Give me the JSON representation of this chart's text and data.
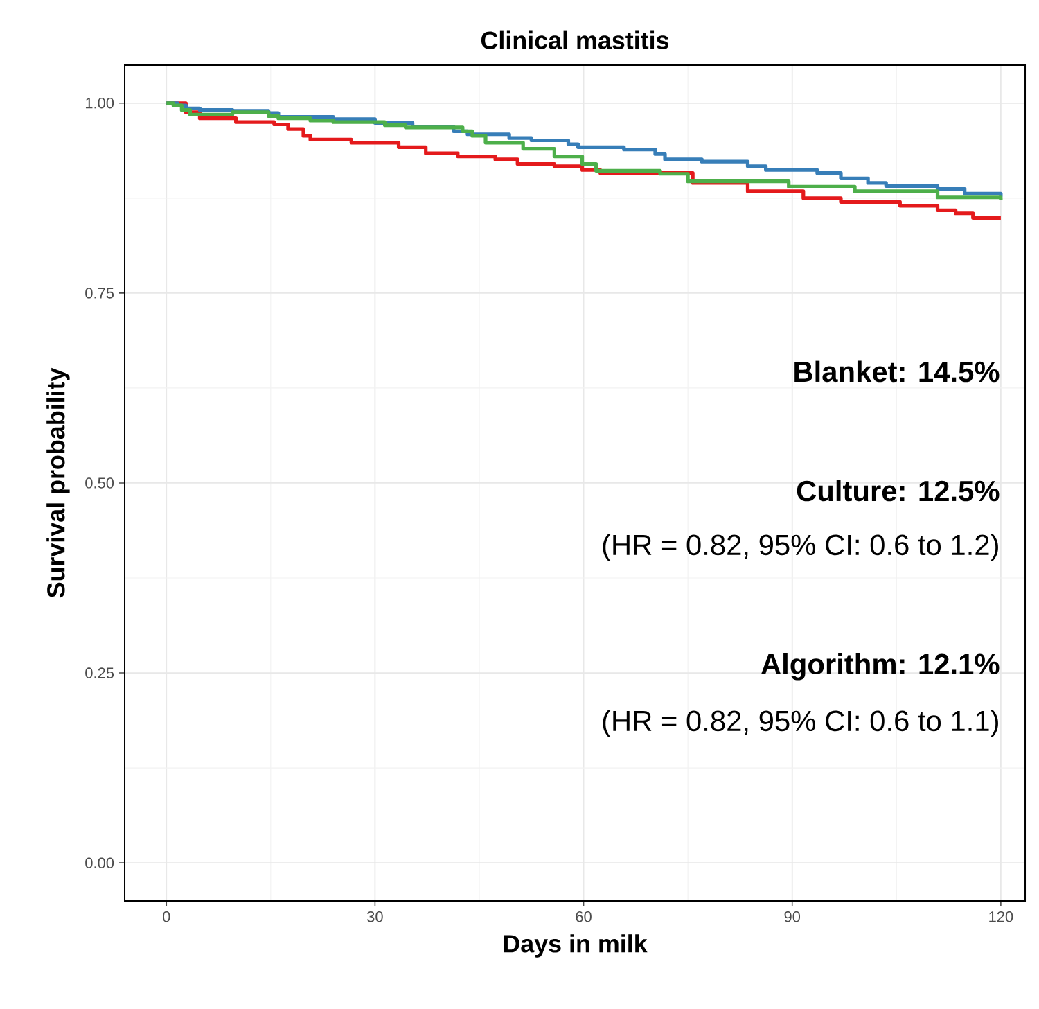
{
  "chart_data": {
    "type": "step",
    "title": "Clinical mastitis",
    "xlabel": "Days in milk",
    "ylabel": "Survival probability",
    "xlim": [
      -6,
      123.5
    ],
    "ylim": [
      -0.05,
      1.05
    ],
    "xticks": [
      0,
      30,
      60,
      90,
      120
    ],
    "yticks": [
      {
        "value": 0,
        "label": "0.00"
      },
      {
        "value": 0.25,
        "label": "0.25"
      },
      {
        "value": 0.5,
        "label": "0.50"
      },
      {
        "value": 0.75,
        "label": "0.75"
      },
      {
        "value": 1,
        "label": "1.00"
      }
    ],
    "grid": true,
    "series": [
      {
        "color": "#e41a1c",
        "x": [
          0,
          2.8,
          4.8,
          10,
          15.5,
          17.5,
          19.7,
          20.7,
          26.6,
          33.4,
          37.3,
          41.9,
          47.3,
          50.5,
          55.8,
          59.8,
          62.4,
          75.7,
          83.6,
          91.6,
          97,
          105.5,
          110.9,
          113.5,
          116,
          120
        ],
        "values": [
          1.0,
          0.988,
          0.98,
          0.975,
          0.972,
          0.966,
          0.957,
          0.952,
          0.948,
          0.942,
          0.934,
          0.93,
          0.926,
          0.92,
          0.917,
          0.912,
          0.908,
          0.895,
          0.884,
          0.875,
          0.87,
          0.865,
          0.859,
          0.855,
          0.849,
          0.849
        ]
      },
      {
        "color": "#377eb8",
        "x": [
          0,
          1.6,
          2.8,
          4.8,
          9.5,
          14.7,
          16.1,
          24,
          30,
          35.4,
          41.3,
          43.3,
          49.3,
          52.5,
          57.8,
          59.2,
          65.8,
          70.3,
          71.7,
          77,
          83.6,
          86.2,
          93.6,
          97,
          100.9,
          103.5,
          110.9,
          114.8,
          120
        ],
        "values": [
          1.0,
          0.997,
          0.993,
          0.991,
          0.989,
          0.987,
          0.982,
          0.979,
          0.974,
          0.969,
          0.963,
          0.959,
          0.954,
          0.951,
          0.946,
          0.942,
          0.939,
          0.933,
          0.926,
          0.923,
          0.917,
          0.912,
          0.908,
          0.901,
          0.895,
          0.891,
          0.887,
          0.881,
          0.877
        ]
      },
      {
        "color": "#4daf4a",
        "x": [
          0,
          1,
          2.2,
          3.4,
          9.5,
          14.7,
          16.1,
          20.7,
          24,
          31.4,
          34.4,
          42.6,
          44,
          45.9,
          51.3,
          55.8,
          59.8,
          61.8,
          71,
          75,
          89.5,
          99,
          110.9,
          120
        ],
        "values": [
          1.0,
          0.997,
          0.991,
          0.985,
          0.988,
          0.983,
          0.98,
          0.977,
          0.975,
          0.971,
          0.968,
          0.963,
          0.957,
          0.948,
          0.94,
          0.93,
          0.92,
          0.911,
          0.907,
          0.897,
          0.89,
          0.884,
          0.876,
          0.873
        ]
      }
    ],
    "annotations": [
      "**Blanket: 14.5%**",
      "**Culture: 12.5%**",
      "(HR = 0.82, 95% CI: 0.6 to 1.2)",
      "**Algorithm: 12.1%**",
      "(HR = 0.82, 95% CI: 0.6 to 1.1)"
    ]
  }
}
